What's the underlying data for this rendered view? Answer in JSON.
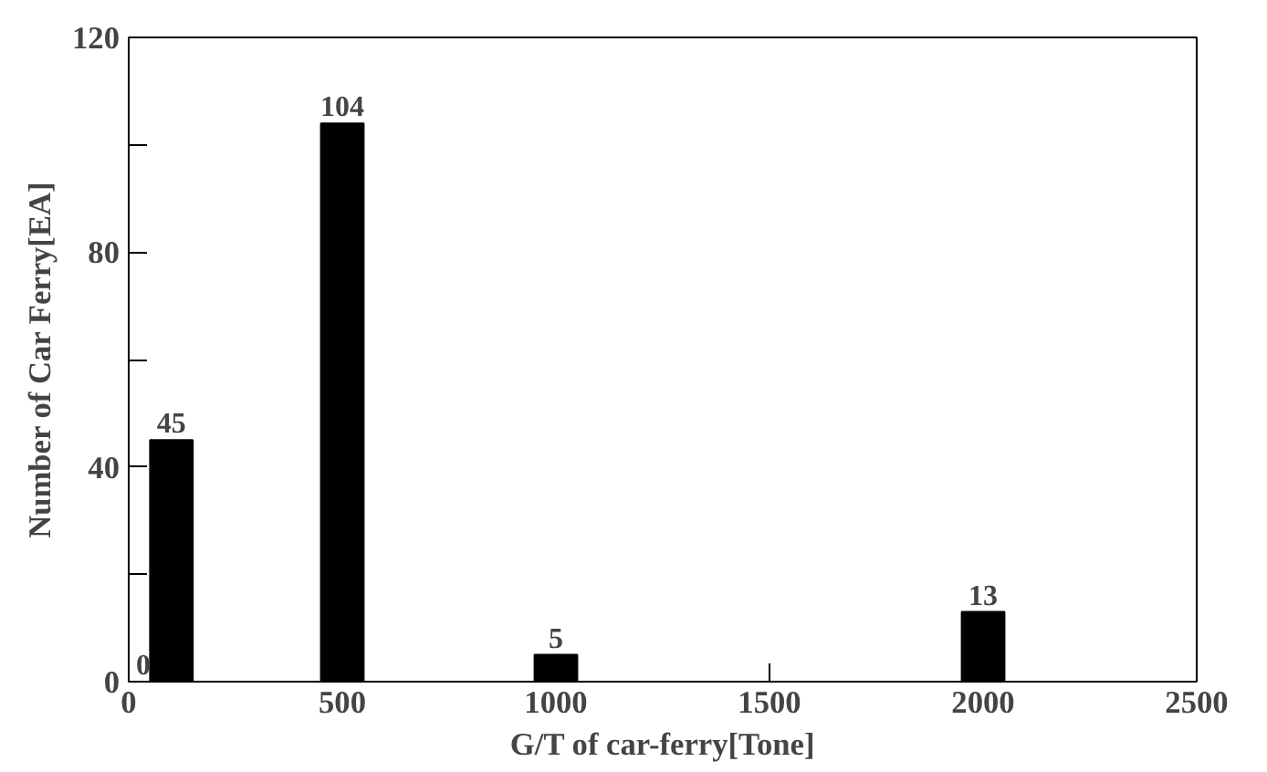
{
  "chart_data": {
    "type": "bar",
    "xlabel": "G/T of car-ferry[Tone]",
    "ylabel": "Number of Car Ferry[EA]",
    "x": [
      0,
      100,
      500,
      1000,
      2000
    ],
    "series": [
      {
        "color": "#000000",
        "values": [
          0,
          45,
          104,
          5,
          13
        ]
      }
    ],
    "data_labels": true,
    "xlim": [
      0,
      2500
    ],
    "xticks": [
      0,
      500,
      1000,
      1500,
      2000,
      2500
    ],
    "ylim": [
      0,
      120
    ],
    "yticks": [
      0,
      {
        "value": 20,
        "label": null
      },
      40,
      {
        "value": 60,
        "label": null
      },
      80,
      {
        "value": 100,
        "label": null
      },
      120
    ],
    "grid": false
  }
}
